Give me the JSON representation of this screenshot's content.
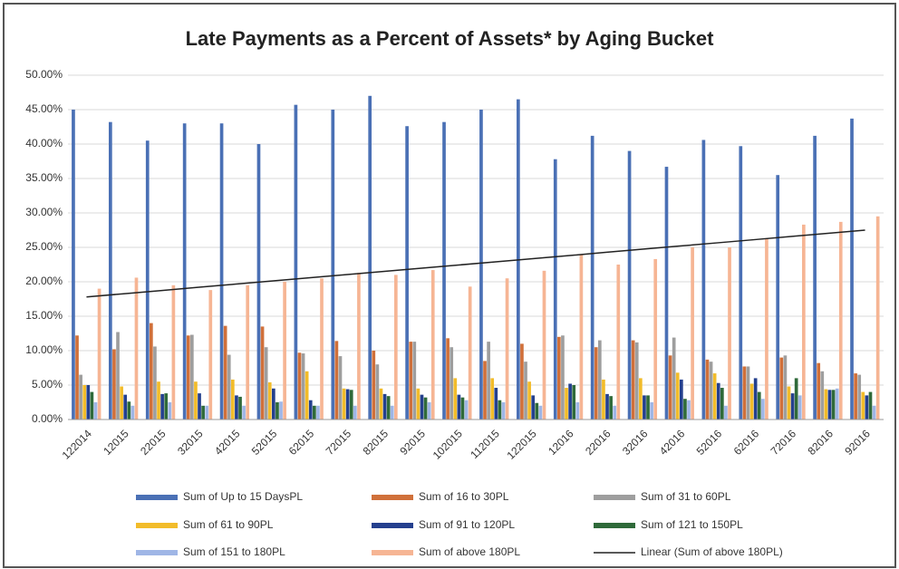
{
  "chart_data": {
    "type": "bar",
    "title": "Late Payments as a Percent of Assets* by Aging Bucket",
    "categories": [
      "122014",
      "12015",
      "22015",
      "32015",
      "42015",
      "52015",
      "62015",
      "72015",
      "82015",
      "92015",
      "102015",
      "112015",
      "122015",
      "12016",
      "22016",
      "32016",
      "42016",
      "52016",
      "62016",
      "72016",
      "82016",
      "92016"
    ],
    "series": [
      {
        "name": "Sum of Up to 15 DaysPL",
        "color": "#4a70b5",
        "values": [
          45,
          43.2,
          40.5,
          43,
          43,
          40,
          45.7,
          45,
          47,
          42.6,
          43.2,
          45,
          46.5,
          37.8,
          41.2,
          39,
          36.7,
          40.6,
          39.7,
          35.5,
          41.2,
          43.7
        ]
      },
      {
        "name": "Sum of 16 to 30PL",
        "color": "#d0703a",
        "values": [
          12.2,
          10.2,
          14,
          12.2,
          13.6,
          13.5,
          9.7,
          11.4,
          10,
          11.3,
          11.8,
          8.5,
          11,
          12,
          10.5,
          11.5,
          9.3,
          8.7,
          7.7,
          9,
          8.2,
          6.7
        ]
      },
      {
        "name": "Sum of 31 to 60PL",
        "color": "#9e9e9e",
        "values": [
          6.5,
          12.7,
          10.6,
          12.3,
          9.4,
          10.5,
          9.6,
          9.2,
          8,
          11.3,
          10.5,
          11.3,
          8.4,
          12.2,
          11.5,
          11.2,
          11.9,
          8.4,
          7.7,
          9.3,
          7,
          6.5
        ]
      },
      {
        "name": "Sum of 61 to 90PL",
        "color": "#f2bc2a",
        "values": [
          5,
          4.8,
          5.5,
          5.5,
          5.8,
          5.4,
          7,
          4.5,
          4.5,
          4.5,
          6,
          6,
          5.5,
          4.6,
          5.8,
          6,
          6.8,
          6.7,
          5.2,
          4.8,
          4.4,
          4
        ]
      },
      {
        "name": "Sum of 91 to 120PL",
        "color": "#24408e",
        "values": [
          5,
          3.6,
          3.7,
          3.8,
          3.5,
          4.5,
          2.8,
          4.4,
          3.7,
          3.6,
          3.6,
          4.6,
          3.5,
          5.2,
          3.7,
          3.5,
          5.8,
          5.3,
          6,
          3.8,
          4.3,
          3.5
        ]
      },
      {
        "name": "Sum of 121 to 150PL",
        "color": "#2f6a3a",
        "values": [
          4,
          2.6,
          3.8,
          2,
          3.3,
          2.5,
          2,
          4.3,
          3.4,
          3.2,
          3.2,
          2.8,
          2.4,
          5,
          3.4,
          3.5,
          3,
          4.6,
          4,
          6,
          4.3,
          4
        ]
      },
      {
        "name": "Sum of 151 to 180PL",
        "color": "#9fb6e6",
        "values": [
          2.5,
          2,
          2.5,
          2,
          2,
          2.6,
          2,
          2,
          2,
          2.5,
          2.8,
          2.5,
          2,
          2.5,
          2,
          2.5,
          2.8,
          2,
          3,
          3.5,
          4.5,
          2
        ]
      },
      {
        "name": "Sum of above 180PL",
        "color": "#f6b594",
        "values": [
          19,
          20.6,
          19.5,
          18.8,
          19.5,
          20,
          20.5,
          21.3,
          21,
          21.7,
          19.3,
          20.5,
          21.6,
          24,
          22.5,
          23.3,
          25,
          25,
          26.3,
          28.3,
          28.7,
          29.5
        ]
      }
    ],
    "trend": {
      "name": "Linear (Sum of above 180PL)",
      "color": "#222222",
      "values": [
        17.8,
        18.26,
        18.72,
        19.19,
        19.65,
        20.11,
        20.57,
        21.03,
        21.5,
        21.96,
        22.42,
        22.88,
        23.34,
        23.8,
        24.27,
        24.73,
        25.19,
        25.65,
        26.11,
        26.58,
        27.04,
        27.5
      ]
    },
    "ylim": [
      0,
      50
    ],
    "yticks": [
      {
        "value": 0,
        "label": "0.00%"
      },
      {
        "value": 5,
        "label": "5.00%"
      },
      {
        "value": 10,
        "label": "10.00%"
      },
      {
        "value": 15,
        "label": "15.00%"
      },
      {
        "value": 20,
        "label": "20.00%"
      },
      {
        "value": 25,
        "label": "25.00%"
      },
      {
        "value": 30,
        "label": "30.00%"
      },
      {
        "value": 35,
        "label": "35.00%"
      },
      {
        "value": 40,
        "label": "40.00%"
      },
      {
        "value": 45,
        "label": "45.00%"
      },
      {
        "value": 50,
        "label": "50.00%"
      }
    ],
    "grid": true
  }
}
